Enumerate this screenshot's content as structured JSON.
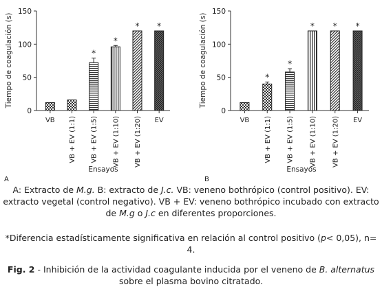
{
  "chart_data": [
    {
      "type": "bar",
      "panel_label": "A",
      "categories": [
        "VB",
        "VB + EV (1:1)",
        "VB + EV (1:5)",
        "VB + EV (1:10)",
        "VB + EV (1:20)",
        "EV"
      ],
      "values": [
        12,
        16,
        72,
        96,
        120,
        120
      ],
      "errors": [
        0,
        0,
        7,
        2,
        0,
        0
      ],
      "significant": [
        false,
        false,
        true,
        true,
        true,
        true
      ],
      "patterns": [
        "check",
        "check",
        "hlines",
        "vlines",
        "diag",
        "dense"
      ],
      "xlabel": "Ensayos",
      "ylabel": "Tiempo de coagulación (s)",
      "ylim": [
        0,
        150
      ],
      "yticks": [
        0,
        50,
        100,
        150
      ],
      "grid": false
    },
    {
      "type": "bar",
      "panel_label": "B",
      "categories": [
        "VB",
        "VB + EV (1:1)",
        "VB + EV (1:5)",
        "VB + EV (1:10)",
        "VB + EV (1:20)",
        "EV"
      ],
      "values": [
        12,
        40,
        58,
        120,
        120,
        120
      ],
      "errors": [
        0,
        3,
        5,
        0,
        0,
        0
      ],
      "significant": [
        false,
        true,
        true,
        true,
        true,
        true
      ],
      "patterns": [
        "check",
        "check",
        "hlines",
        "vlines",
        "diag",
        "dense"
      ],
      "xlabel": "Ensayos",
      "ylabel": "Tiempo de coagulación (s)",
      "ylim": [
        0,
        150
      ],
      "yticks": [
        0,
        50,
        100,
        150
      ],
      "grid": false
    }
  ],
  "marker": "*",
  "caption": {
    "p1_a": "A: Extracto de ",
    "p1_mg": "M.g.",
    "p1_b": " B: extracto de ",
    "p1_jc": "J.c.",
    "p1_c": " VB: veneno bothrópico (control positivo). EV: extracto vegetal (control negativo). VB + EV: veneno bothrópico incubado con extracto de ",
    "p1_mg2": "M.g",
    "p1_d": " o ",
    "p1_jc2": "J.c",
    "p1_e": " en diferentes proporciones.",
    "p2_a": "*Diferencia estadísticamente significativa en relación al control positivo (",
    "p2_p": "p",
    "p2_b": "< 0,05), n= 4.",
    "fig_label": "Fig. 2",
    "fig_a": " - Inhibición de la actividad coagulante inducida por el veneno de ",
    "fig_species": "B. alternatus",
    "fig_b": " sobre el plasma bovino citratado."
  }
}
